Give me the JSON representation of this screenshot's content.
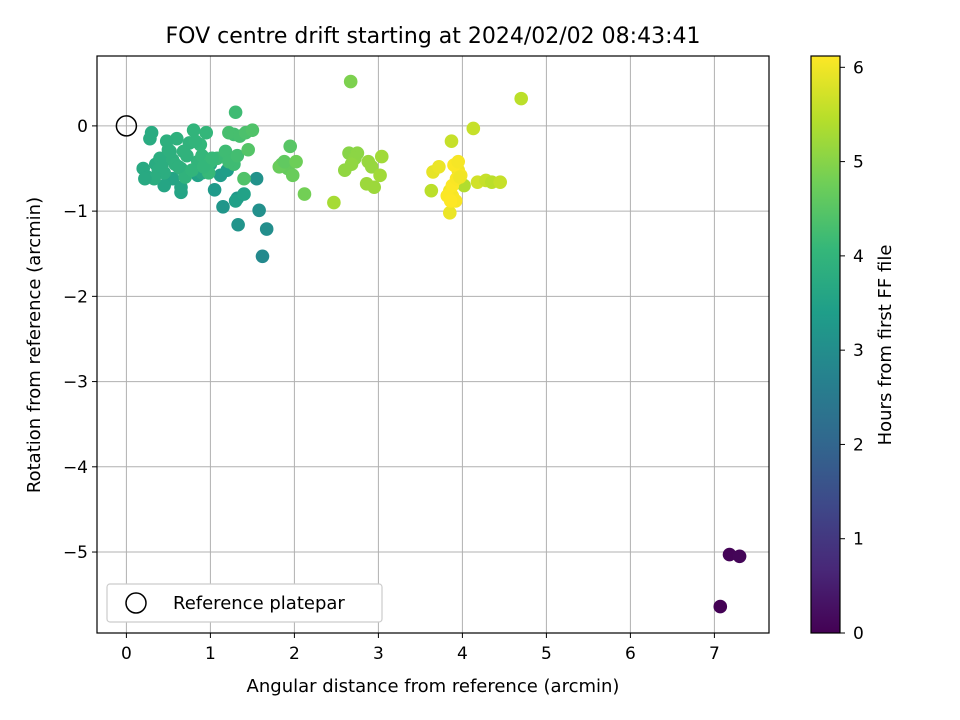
{
  "chart_data": {
    "type": "scatter",
    "title": "FOV centre drift starting at 2024/02/02 08:43:41",
    "xlabel": "Angular distance from reference (arcmin)",
    "ylabel": "Rotation from reference (arcmin)",
    "xlim": [
      -0.35,
      7.65
    ],
    "ylim": [
      -5.95,
      0.82
    ],
    "xticks": [
      0,
      1,
      2,
      3,
      4,
      5,
      6,
      7
    ],
    "yticks": [
      0,
      -1,
      -2,
      -3,
      -4,
      -5
    ],
    "xtick_labels": [
      "0",
      "1",
      "2",
      "3",
      "4",
      "5",
      "6",
      "7"
    ],
    "ytick_labels": [
      "0",
      "−1",
      "−2",
      "−3",
      "−4",
      "−5"
    ],
    "grid": true,
    "legend": {
      "position": "lower-left",
      "entries": [
        "Reference platepar"
      ]
    },
    "reference_point": {
      "x": 0,
      "y": 0,
      "label": "Reference platepar"
    },
    "colorbar": {
      "label": "Hours from first FF file",
      "min": 0,
      "max": 6.12,
      "ticks": [
        0,
        1,
        2,
        3,
        4,
        5,
        6
      ],
      "tick_labels": [
        "0",
        "1",
        "2",
        "3",
        "4",
        "5",
        "6"
      ],
      "colormap": [
        "#440154",
        "#482878",
        "#3e4989",
        "#31688e",
        "#26828e",
        "#1f9e89",
        "#35b779",
        "#6ece58",
        "#b5de2b",
        "#fde725"
      ]
    },
    "series": [
      {
        "x": [
          7.07,
          7.18,
          7.3
        ],
        "y": [
          -5.64,
          -5.03,
          -5.05
        ],
        "c": [
          0.02,
          0.05,
          0.08
        ]
      },
      {
        "x": [
          1.62,
          1.67,
          1.58,
          1.55,
          1.33,
          1.15,
          1.32,
          1.05,
          1.12,
          1.2,
          1.3,
          1.4,
          0.85,
          0.65,
          0.55,
          0.45,
          0.65,
          0.9,
          1.0
        ],
        "y": [
          -1.53,
          -1.21,
          -0.99,
          -0.62,
          -1.16,
          -0.95,
          -0.85,
          -0.75,
          -0.58,
          -0.52,
          -0.88,
          -0.8,
          -0.58,
          -0.78,
          -0.62,
          -0.7,
          -0.72,
          -0.55,
          -0.45
        ],
        "c": [
          2.9,
          3.0,
          3.05,
          3.1,
          3.15,
          3.2,
          3.25,
          3.3,
          3.35,
          3.4,
          3.45,
          3.5,
          3.5,
          3.55,
          3.55,
          3.6,
          3.6,
          3.65,
          3.65
        ]
      },
      {
        "x": [
          0.2,
          0.25,
          0.3,
          0.35,
          0.4,
          0.45,
          0.5,
          0.55,
          0.6,
          0.65,
          0.7,
          0.75,
          0.8,
          0.85,
          0.9,
          0.95,
          1.0,
          0.28,
          0.33,
          0.48,
          0.58,
          0.68,
          0.78,
          0.88,
          0.98,
          1.08,
          1.18,
          1.28,
          0.38,
          0.52,
          0.62,
          0.72,
          0.82,
          0.92,
          1.02,
          1.22,
          1.32,
          0.22,
          0.42
        ],
        "y": [
          -0.5,
          -0.6,
          -0.08,
          -0.45,
          -0.38,
          -0.55,
          -0.28,
          -0.4,
          -0.15,
          -0.5,
          -0.6,
          -0.2,
          -0.05,
          -0.42,
          -0.35,
          -0.08,
          -0.42,
          -0.15,
          -0.62,
          -0.18,
          -0.45,
          -0.3,
          -0.52,
          -0.22,
          -0.55,
          -0.38,
          -0.3,
          -0.45,
          -0.52,
          -0.3,
          -0.48,
          -0.35,
          -0.18,
          -0.48,
          -0.38,
          -0.42,
          -0.35,
          -0.62,
          -0.48
        ],
        "c": [
          3.7,
          3.7,
          3.75,
          3.75,
          3.8,
          3.8,
          3.85,
          3.85,
          3.9,
          3.9,
          3.95,
          3.95,
          4.0,
          4.0,
          4.05,
          4.05,
          4.1,
          3.75,
          3.8,
          3.85,
          3.9,
          3.95,
          4.0,
          4.05,
          4.1,
          4.15,
          4.2,
          4.2,
          3.8,
          3.85,
          3.9,
          3.95,
          4.0,
          4.05,
          4.1,
          4.2,
          4.25,
          3.7,
          3.8
        ]
      },
      {
        "x": [
          1.3,
          1.28,
          1.22,
          1.35,
          1.42,
          1.5,
          1.4,
          1.45,
          1.95,
          1.85,
          1.92,
          1.98,
          1.82,
          2.12,
          1.88,
          2.02
        ],
        "y": [
          0.16,
          -0.1,
          -0.08,
          -0.12,
          -0.08,
          -0.05,
          -0.62,
          -0.28,
          -0.24,
          -0.45,
          -0.5,
          -0.58,
          -0.48,
          -0.8,
          -0.42,
          -0.42
        ],
        "c": [
          4.2,
          4.25,
          4.3,
          4.3,
          4.35,
          4.4,
          4.4,
          4.45,
          4.5,
          4.6,
          4.65,
          4.7,
          4.7,
          4.8,
          4.6,
          4.75
        ]
      },
      {
        "x": [
          2.67,
          2.65,
          2.7,
          2.75,
          2.72,
          2.6,
          2.68,
          2.88,
          2.92,
          2.86,
          2.95,
          3.02,
          3.04,
          2.47
        ],
        "y": [
          0.52,
          -0.32,
          -0.36,
          -0.32,
          -0.38,
          -0.52,
          -0.45,
          -0.42,
          -0.48,
          -0.68,
          -0.72,
          -0.58,
          -0.36,
          -0.9
        ],
        "c": [
          4.9,
          5.0,
          5.0,
          5.05,
          5.05,
          5.1,
          5.1,
          5.15,
          5.15,
          5.2,
          5.2,
          5.25,
          5.25,
          5.3
        ]
      },
      {
        "x": [
          4.7,
          4.13,
          3.63,
          4.18,
          4.28,
          4.35,
          4.45,
          4.02,
          3.87
        ],
        "y": [
          0.32,
          -0.03,
          -0.76,
          -0.66,
          -0.64,
          -0.66,
          -0.66,
          -0.7,
          -0.18
        ],
        "c": [
          5.5,
          5.6,
          5.5,
          5.7,
          5.6,
          5.5,
          5.6,
          5.4,
          5.6
        ]
      },
      {
        "x": [
          3.65,
          3.72,
          3.85,
          3.88,
          3.92,
          3.95,
          3.98,
          3.85,
          3.9,
          3.95,
          3.82,
          3.88,
          3.93,
          3.97,
          3.86
        ],
        "y": [
          -0.54,
          -0.48,
          -0.76,
          -0.82,
          -0.88,
          -0.52,
          -0.58,
          -1.02,
          -0.46,
          -0.42,
          -0.82,
          -0.7,
          -0.62,
          -0.6,
          -0.88
        ],
        "c": [
          5.9,
          5.95,
          6.0,
          6.05,
          6.08,
          6.0,
          6.05,
          5.95,
          6.1,
          6.05,
          6.1,
          6.1,
          6.08,
          6.0,
          6.12
        ]
      }
    ]
  }
}
